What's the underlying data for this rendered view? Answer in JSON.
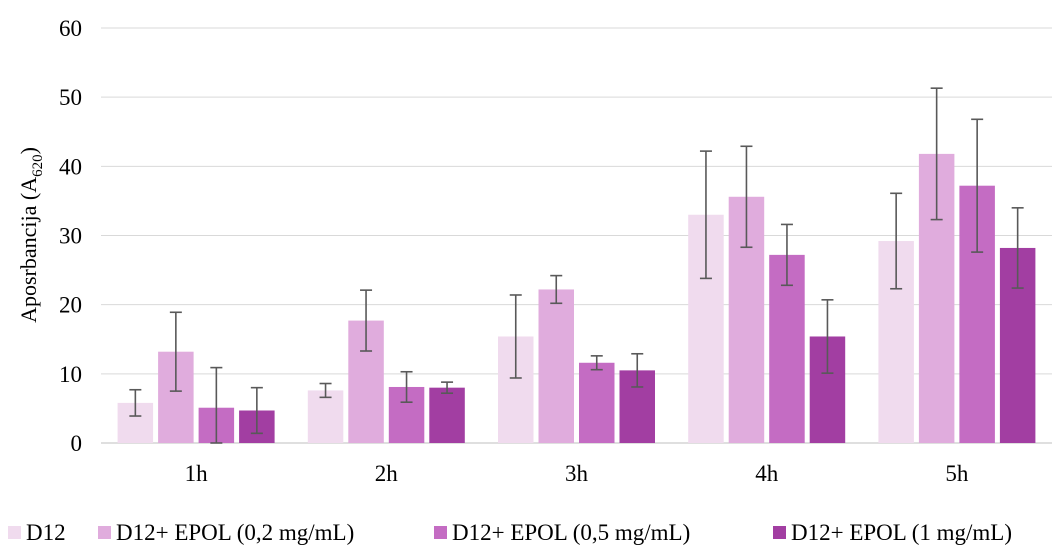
{
  "chart_data": {
    "type": "bar",
    "title": "",
    "xlabel": "",
    "ylabel": "Aposrbancija (A",
    "ylabel_sub": "620",
    "ylabel_close": ")",
    "ylim": [
      0,
      60
    ],
    "yticks": [
      0,
      10,
      20,
      30,
      40,
      50,
      60
    ],
    "grid": true,
    "legend_position": "bottom",
    "categories": [
      "1h",
      "2h",
      "3h",
      "4h",
      "5h"
    ],
    "series": [
      {
        "name": "D12",
        "color": "#f0dbee",
        "values": [
          5.8,
          7.6,
          15.4,
          33.0,
          29.2
        ],
        "errors": [
          1.9,
          1.0,
          6.0,
          9.2,
          6.9
        ]
      },
      {
        "name": "D12+ EPOL (0,2 mg/mL)",
        "color": "#e0acdd",
        "values": [
          13.2,
          17.7,
          22.2,
          35.6,
          41.8
        ],
        "errors": [
          5.7,
          4.4,
          2.0,
          7.3,
          9.5
        ]
      },
      {
        "name": "D12+ EPOL (0,5 mg/mL)",
        "color": "#c46cc3",
        "values": [
          5.1,
          8.1,
          11.6,
          27.2,
          37.2
        ],
        "errors": [
          5.8,
          2.2,
          1.0,
          4.4,
          9.6
        ]
      },
      {
        "name": "D12+ EPOL (1 mg/mL)",
        "color": "#a23ea2",
        "values": [
          4.7,
          8.0,
          10.5,
          15.4,
          28.2
        ],
        "errors": [
          3.3,
          0.8,
          2.4,
          5.3,
          5.8
        ]
      }
    ]
  }
}
